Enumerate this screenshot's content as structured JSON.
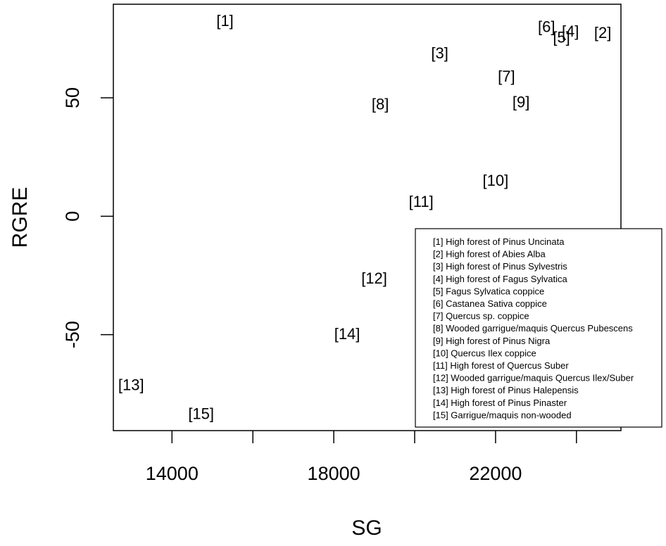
{
  "chart_data": {
    "type": "scatter",
    "title": "",
    "xlabel": "SG",
    "ylabel": "RGRE",
    "xlim": [
      12550,
      25100
    ],
    "ylim": [
      -90.5,
      89.5
    ],
    "x_ticks": [
      14000,
      16000,
      18000,
      20000,
      22000,
      24000
    ],
    "x_tick_labels": [
      "14000",
      "",
      "18000",
      "",
      "22000",
      ""
    ],
    "y_ticks": [
      -50,
      0,
      50
    ],
    "y_tick_labels": [
      "-50",
      "0",
      "50"
    ],
    "grid": false,
    "legend_position": "bottom-right",
    "points": [
      {
        "label": "[1]",
        "x": 15310,
        "y": 82.7
      },
      {
        "label": "[2]",
        "x": 24650,
        "y": 77.6
      },
      {
        "label": "[3]",
        "x": 20620,
        "y": 69.0
      },
      {
        "label": "[4]",
        "x": 23850,
        "y": 78.2
      },
      {
        "label": "[5]",
        "x": 23630,
        "y": 75.7
      },
      {
        "label": "[6]",
        "x": 23260,
        "y": 80.2
      },
      {
        "label": "[7]",
        "x": 22270,
        "y": 59.2
      },
      {
        "label": "[8]",
        "x": 19150,
        "y": 47.5
      },
      {
        "label": "[9]",
        "x": 22630,
        "y": 48.4
      },
      {
        "label": "[10]",
        "x": 22000,
        "y": 15.2
      },
      {
        "label": "[11]",
        "x": 20160,
        "y": 6.3
      },
      {
        "label": "[12]",
        "x": 19000,
        "y": -26.0
      },
      {
        "label": "[13]",
        "x": 12990,
        "y": -71.0
      },
      {
        "label": "[14]",
        "x": 18330,
        "y": -49.5
      },
      {
        "label": "[15]",
        "x": 14720,
        "y": -83.2
      }
    ],
    "legend": [
      "[1] High forest of Pinus Uncinata",
      "[2] High forest of Abies Alba",
      "[3] High forest of Pinus Sylvestris",
      "[4] High forest of Fagus Sylvatica",
      "[5] Fagus Sylvatica coppice",
      "[6] Castanea Sativa coppice",
      "[7] Quercus sp. coppice",
      "[8] Wooded garrigue/maquis Quercus Pubescens",
      "[9] High forest of Pinus Nigra",
      "[10] Quercus Ilex coppice",
      "[11] High forest of Quercus Suber",
      "[12] Wooded garrigue/maquis Quercus Ilex/Suber",
      "[13] High forest of Pinus Halepensis",
      "[14] High forest of Pinus Pinaster",
      "[15] Garrigue/maquis non-wooded"
    ]
  }
}
